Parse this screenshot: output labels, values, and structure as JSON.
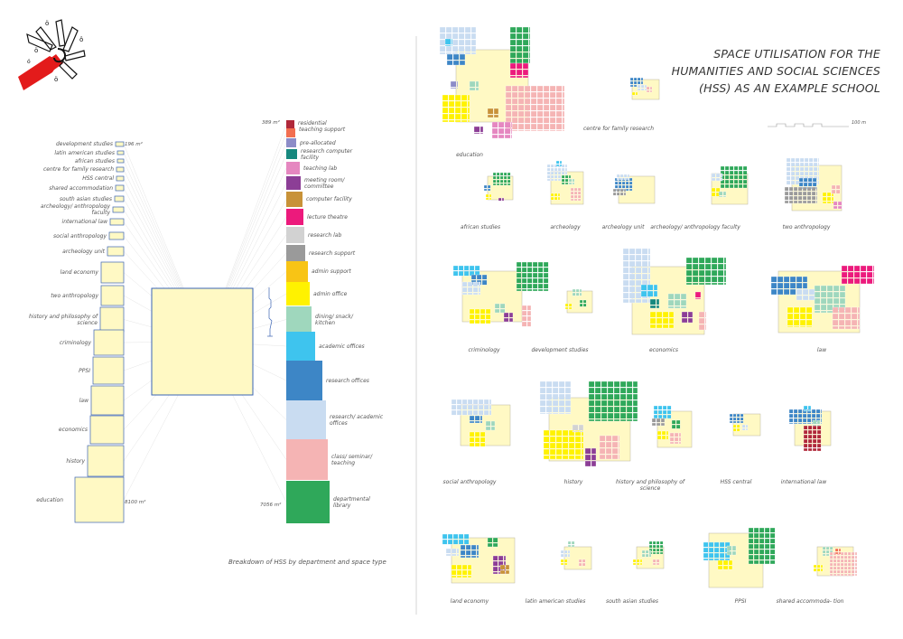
{
  "title": "SPACE UTILISATION FOR THE HUMANITIES AND SOCIAL SCIENCES (HSS) AS AN EXAMPLE SCHOOL",
  "caption": "Breakdown of HSS by department and space type",
  "scale_label": "100 m",
  "department_areas": {
    "top": "196 m²",
    "bottom": "8100 m²"
  },
  "space_type_areas": {
    "top": "389 m²",
    "bottom": "7056 m²"
  },
  "departments": [
    "development studies",
    "latin american studies",
    "african studies",
    "centre for family research",
    "HSS central",
    "shared accommodation",
    "south asian studies",
    "archeology/ anthropology faculty",
    "international law",
    "social anthropology",
    "archeology unit",
    "land economy",
    "two anthropology",
    "history and philosophy of science",
    "criminology",
    "PPSI",
    "law",
    "economics",
    "history",
    "education"
  ],
  "space_types": [
    {
      "label": "residential",
      "color": "#b0283a"
    },
    {
      "label": "teaching support",
      "color": "#f26e50"
    },
    {
      "label": "pre-allocated",
      "color": "#8c8cc8"
    },
    {
      "label": "research computer facility",
      "color": "#17887e"
    },
    {
      "label": "teaching lab",
      "color": "#e587c0"
    },
    {
      "label": "meeting room/ committee",
      "color": "#8c3e96"
    },
    {
      "label": "computer facility",
      "color": "#c89238"
    },
    {
      "label": "lecture theatre",
      "color": "#ec1a7c"
    },
    {
      "label": "research lab",
      "color": "#d2d2d2"
    },
    {
      "label": "research support",
      "color": "#9a9a9a"
    },
    {
      "label": "admin support",
      "color": "#f8c415"
    },
    {
      "label": "admin office",
      "color": "#fff200"
    },
    {
      "label": "dining/ snack/ kitchen",
      "color": "#9fd7bd"
    },
    {
      "label": "academic offices",
      "color": "#3ec4ee"
    },
    {
      "label": "research offices",
      "color": "#3d86c6"
    },
    {
      "label": "research/ academic offices",
      "color": "#c9dcf1"
    },
    {
      "label": "class/ seminar/ teaching",
      "color": "#f5b4b4"
    },
    {
      "label": "departmental library",
      "color": "#2fa85a"
    }
  ],
  "plans": [
    "education",
    "centre for family research",
    "african studies",
    "archeology",
    "archeology unit",
    "archeology/ anthropology faculty",
    "two anthropology",
    "criminology",
    "development studies",
    "economics",
    "law",
    "social anthropology",
    "history",
    "history and philosophy of science",
    "HSS central",
    "international law",
    "land economy",
    "latin american studies",
    "south asian studies",
    "PPSI",
    "shared accommoda- tion"
  ]
}
